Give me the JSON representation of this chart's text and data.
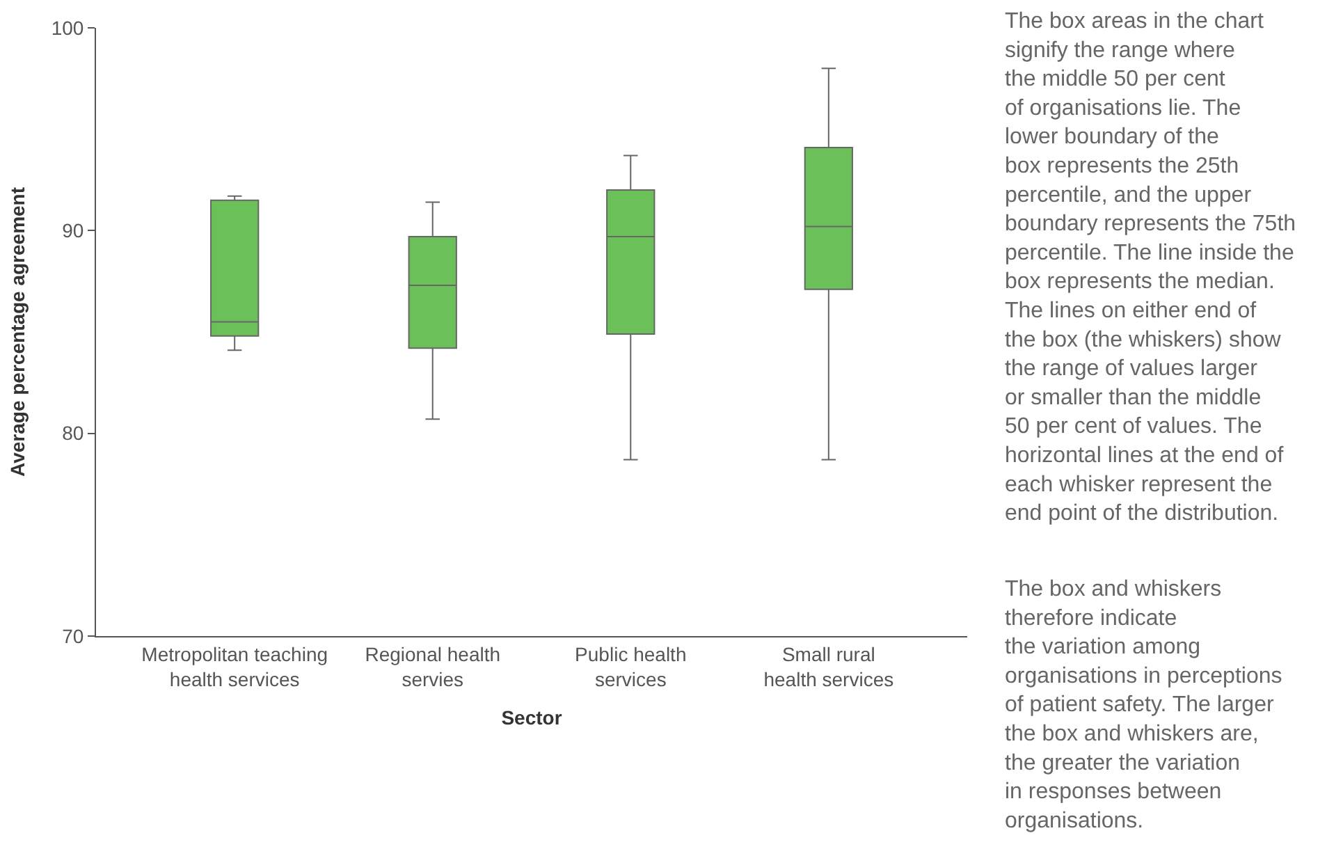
{
  "chart_data": {
    "type": "box",
    "xlabel": "Sector",
    "ylabel": "Average percentage agreement",
    "categories": [
      "Metropolitan teaching\nhealth services",
      "Regional health\nservies",
      "Public health\nservices",
      "Small rural\nhealth services"
    ],
    "color": "#6cc05a",
    "boxes": [
      {
        "low": 84.1,
        "q1": 84.8,
        "median": 85.5,
        "q3": 91.5,
        "high": 91.7
      },
      {
        "low": 80.7,
        "q1": 84.2,
        "median": 87.3,
        "q3": 89.7,
        "high": 91.4
      },
      {
        "low": 78.7,
        "q1": 84.9,
        "median": 89.7,
        "q3": 92.0,
        "high": 93.7
      },
      {
        "low": 78.7,
        "q1": 87.1,
        "median": 90.2,
        "q3": 94.1,
        "high": 98.0
      }
    ],
    "ylim": [
      70,
      100
    ],
    "yticks": [
      70,
      80,
      90,
      100
    ],
    "legend": false,
    "annotations": [
      "The box areas in the chart\nsignify the range where\nthe middle 50 per cent\nof organisations lie. The\nlower boundary of the\nbox represents the 25th\npercentile, and the upper\nboundary represents the 75th\npercentile. The line inside the\nbox represents the median.\nThe lines on either end of\nthe box (the whiskers) show\nthe range of values larger\nor smaller than the middle\n50 per cent of values. The\nhorizontal lines at the end of\neach whisker represent the\nend point of the distribution.",
      "The box and whiskers\ntherefore indicate\nthe variation among\norganisations in perceptions\nof patient safety. The larger\nthe box and whiskers are,\nthe greater the variation\nin responses between\norganisations."
    ]
  }
}
